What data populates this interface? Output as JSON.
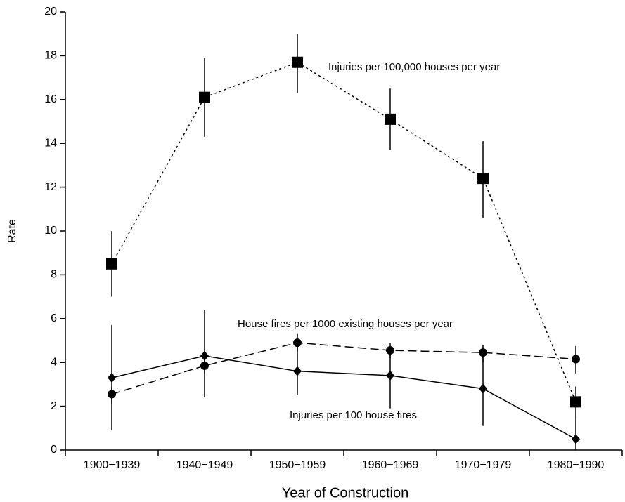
{
  "chart_data": {
    "type": "line",
    "x_label": "Year of Construction",
    "y_label": "Rate",
    "categories": [
      "1900−1939",
      "1940−1949",
      "1950−1959",
      "1960−1969",
      "1970−1979",
      "1980−1990"
    ],
    "ylim": [
      0,
      20
    ],
    "yticks": [
      0,
      2,
      4,
      6,
      8,
      10,
      12,
      14,
      16,
      18,
      20
    ],
    "grid": false,
    "series": [
      {
        "name": "Injuries per 100,000 houses per year",
        "color": "#000000",
        "marker": "square",
        "line_style": "dotted",
        "values": [
          8.5,
          16.1,
          17.7,
          15.1,
          12.4,
          2.2
        ],
        "lower": [
          7.0,
          14.3,
          16.3,
          13.7,
          10.6,
          1.4
        ],
        "upper": [
          10.0,
          17.9,
          19.0,
          16.5,
          14.1,
          2.9
        ]
      },
      {
        "name": "House fires per 1000 existing houses per year",
        "color": "#000000",
        "marker": "circle",
        "line_style": "dashed",
        "values": [
          2.55,
          3.85,
          4.9,
          4.55,
          4.45,
          4.15
        ],
        "lower": [
          2.1,
          3.5,
          4.5,
          4.2,
          4.0,
          3.5
        ],
        "upper": [
          2.9,
          4.2,
          5.3,
          4.9,
          4.8,
          4.75
        ]
      },
      {
        "name": "Injuries per 100 house fires",
        "color": "#000000",
        "marker": "diamond",
        "line_style": "solid",
        "values": [
          3.3,
          4.3,
          3.6,
          3.4,
          2.8,
          0.5
        ],
        "lower": [
          0.9,
          2.4,
          2.5,
          1.9,
          1.1,
          0
        ],
        "upper": [
          5.7,
          6.4,
          4.7,
          4.6,
          4.4,
          1.4
        ]
      }
    ]
  }
}
